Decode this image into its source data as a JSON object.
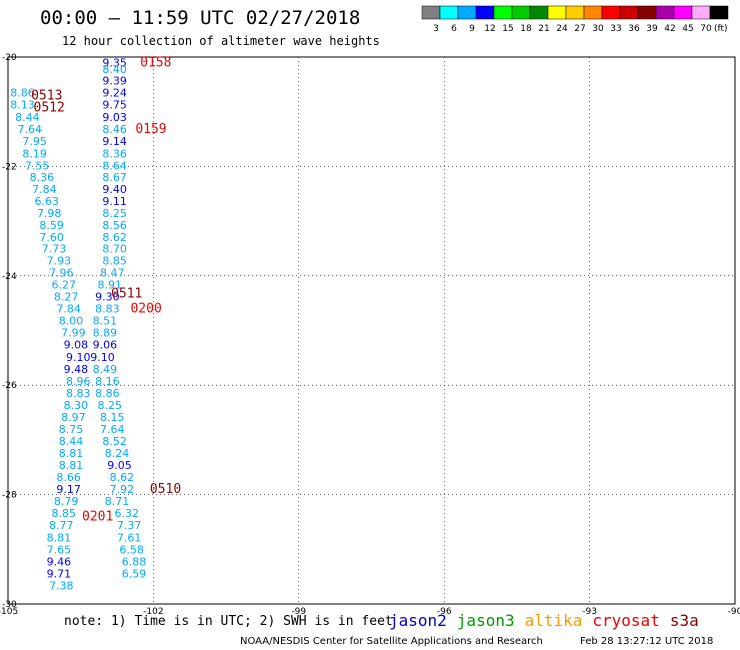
{
  "title": "00:00 — 11:59 UTC 02/27/2018",
  "subtitle": "12 hour collection of altimeter wave heights",
  "colorbar": {
    "labels": [
      "3",
      "6",
      "9",
      "12",
      "15",
      "18",
      "21",
      "24",
      "27",
      "30",
      "33",
      "36",
      "39",
      "42",
      "45",
      "70",
      "(ft)"
    ],
    "colors": [
      "#808080",
      "#00ffff",
      "#00aaff",
      "#0000ff",
      "#00ff00",
      "#00cc00",
      "#008800",
      "#ffff00",
      "#ffcc00",
      "#ff8800",
      "#ff0000",
      "#cc0000",
      "#880000",
      "#aa00aa",
      "#ff00ff",
      "#ffaaff",
      "#000000"
    ]
  },
  "note": "note: 1) Time is in UTC; 2) SWH is in feet",
  "satellites": [
    {
      "name": "jason2",
      "color": "#0000cc"
    },
    {
      "name": "jason3",
      "color": "#009900"
    },
    {
      "name": "altika",
      "color": "#ff9900"
    },
    {
      "name": "cryosat",
      "color": "#ee0000"
    },
    {
      "name": "s3a",
      "color": "#880000"
    }
  ],
  "credit": "NOAA/NESDIS Center for Satellite Applications and Research",
  "timestamp": "Feb 28 13:27:12 UTC 2018",
  "chart_data": {
    "type": "scatter",
    "xlim": [
      -105,
      -90
    ],
    "ylim": [
      -30,
      -20
    ],
    "x_ticks": [
      -105,
      -102,
      -99,
      -96,
      -93,
      -90
    ],
    "y_ticks": [
      -20,
      -22,
      -24,
      -26,
      -28,
      -30
    ],
    "grid": "dotted",
    "color_scale": [
      {
        "max": 9,
        "color": "#00aaff"
      },
      {
        "max": 12,
        "color": "#0000ff"
      }
    ],
    "tracks": [
      {
        "name": "track-east",
        "points": [
          {
            "lon": -102.8,
            "lat": -20.1,
            "v": "9.35"
          },
          {
            "lon": -102.8,
            "lat": -20.22,
            "v": "8.40"
          },
          {
            "lon": -102.8,
            "lat": -20.43,
            "v": "9.39"
          },
          {
            "lon": -102.8,
            "lat": -20.65,
            "v": "9.24"
          },
          {
            "lon": -102.8,
            "lat": -20.87,
            "v": "9.75"
          },
          {
            "lon": -102.8,
            "lat": -21.1,
            "v": "9.03"
          },
          {
            "lon": -102.8,
            "lat": -21.32,
            "v": "8.46"
          },
          {
            "lon": -102.8,
            "lat": -21.54,
            "v": "9.14"
          },
          {
            "lon": -102.8,
            "lat": -21.76,
            "v": "8.36"
          },
          {
            "lon": -102.8,
            "lat": -21.98,
            "v": "8.64"
          },
          {
            "lon": -102.8,
            "lat": -22.19,
            "v": "8.67"
          },
          {
            "lon": -102.8,
            "lat": -22.41,
            "v": "9.40"
          },
          {
            "lon": -102.8,
            "lat": -22.63,
            "v": "9.11"
          },
          {
            "lon": -102.8,
            "lat": -22.85,
            "v": "8.25"
          },
          {
            "lon": -102.8,
            "lat": -23.07,
            "v": "8.56"
          },
          {
            "lon": -102.8,
            "lat": -23.29,
            "v": "8.62"
          },
          {
            "lon": -102.8,
            "lat": -23.5,
            "v": "8.70"
          },
          {
            "lon": -102.8,
            "lat": -23.72,
            "v": "8.85"
          },
          {
            "lon": -102.85,
            "lat": -23.94,
            "v": "8.47"
          },
          {
            "lon": -102.9,
            "lat": -24.16,
            "v": "8.91"
          },
          {
            "lon": -102.95,
            "lat": -24.38,
            "v": "9.30"
          },
          {
            "lon": -102.95,
            "lat": -24.6,
            "v": "8.83"
          },
          {
            "lon": -103.0,
            "lat": -24.82,
            "v": "8.51"
          },
          {
            "lon": -103.0,
            "lat": -25.04,
            "v": "8.89"
          },
          {
            "lon": -103.0,
            "lat": -25.26,
            "v": "9.06"
          },
          {
            "lon": -103.05,
            "lat": -25.48,
            "v": "9.10"
          },
          {
            "lon": -103.0,
            "lat": -25.7,
            "v": "8.49"
          },
          {
            "lon": -102.95,
            "lat": -25.92,
            "v": "8.16"
          },
          {
            "lon": -102.95,
            "lat": -26.14,
            "v": "8.86"
          },
          {
            "lon": -102.9,
            "lat": -26.36,
            "v": "8.25"
          },
          {
            "lon": -102.85,
            "lat": -26.58,
            "v": "8.15"
          },
          {
            "lon": -102.85,
            "lat": -26.8,
            "v": "7.64"
          },
          {
            "lon": -102.8,
            "lat": -27.02,
            "v": "8.52"
          },
          {
            "lon": -102.75,
            "lat": -27.24,
            "v": "8.24"
          },
          {
            "lon": -102.7,
            "lat": -27.46,
            "v": "9.05"
          },
          {
            "lon": -102.65,
            "lat": -27.68,
            "v": "8.62"
          },
          {
            "lon": -102.65,
            "lat": -27.9,
            "v": "7.92"
          },
          {
            "lon": -102.75,
            "lat": -28.12,
            "v": "8.71"
          },
          {
            "lon": -102.55,
            "lat": -28.34,
            "v": "6.32"
          },
          {
            "lon": -102.5,
            "lat": -28.56,
            "v": "7.37"
          },
          {
            "lon": -102.5,
            "lat": -28.78,
            "v": "7.61"
          },
          {
            "lon": -102.45,
            "lat": -29.0,
            "v": "6.58"
          },
          {
            "lon": -102.4,
            "lat": -29.22,
            "v": "6.88"
          },
          {
            "lon": -102.4,
            "lat": -29.44,
            "v": "6.59"
          }
        ]
      },
      {
        "name": "track-west",
        "points": [
          {
            "lon": -104.7,
            "lat": -20.65,
            "v": "8.86"
          },
          {
            "lon": -104.7,
            "lat": -20.87,
            "v": "8.13"
          },
          {
            "lon": -104.6,
            "lat": -21.1,
            "v": "8.44"
          },
          {
            "lon": -104.55,
            "lat": -21.32,
            "v": "7.64"
          },
          {
            "lon": -104.45,
            "lat": -21.54,
            "v": "7.95"
          },
          {
            "lon": -104.45,
            "lat": -21.76,
            "v": "8.19"
          },
          {
            "lon": -104.4,
            "lat": -21.98,
            "v": "7.55"
          },
          {
            "lon": -104.3,
            "lat": -22.19,
            "v": "8.36"
          },
          {
            "lon": -104.25,
            "lat": -22.41,
            "v": "7.84"
          },
          {
            "lon": -104.2,
            "lat": -22.63,
            "v": "6.63"
          },
          {
            "lon": -104.15,
            "lat": -22.85,
            "v": "7.98"
          },
          {
            "lon": -104.1,
            "lat": -23.07,
            "v": "8.59"
          },
          {
            "lon": -104.1,
            "lat": -23.29,
            "v": "7.60"
          },
          {
            "lon": -104.05,
            "lat": -23.5,
            "v": "7.73"
          },
          {
            "lon": -103.95,
            "lat": -23.72,
            "v": "7.93"
          },
          {
            "lon": -103.9,
            "lat": -23.94,
            "v": "7.96"
          },
          {
            "lon": -103.85,
            "lat": -24.16,
            "v": "6.27"
          },
          {
            "lon": -103.8,
            "lat": -24.38,
            "v": "8.27"
          },
          {
            "lon": -103.75,
            "lat": -24.6,
            "v": "7.84"
          },
          {
            "lon": -103.7,
            "lat": -24.82,
            "v": "8.00"
          },
          {
            "lon": -103.65,
            "lat": -25.04,
            "v": "7.99"
          },
          {
            "lon": -103.6,
            "lat": -25.26,
            "v": "9.08"
          },
          {
            "lon": -103.55,
            "lat": -25.48,
            "v": "9.10"
          },
          {
            "lon": -103.6,
            "lat": -25.7,
            "v": "9.48"
          },
          {
            "lon": -103.55,
            "lat": -25.92,
            "v": "8.96"
          },
          {
            "lon": -103.55,
            "lat": -26.14,
            "v": "8.83"
          },
          {
            "lon": -103.6,
            "lat": -26.36,
            "v": "8.30"
          },
          {
            "lon": -103.65,
            "lat": -26.58,
            "v": "8.97"
          },
          {
            "lon": -103.7,
            "lat": -26.8,
            "v": "8.75"
          },
          {
            "lon": -103.7,
            "lat": -27.02,
            "v": "8.44"
          },
          {
            "lon": -103.7,
            "lat": -27.24,
            "v": "8.81"
          },
          {
            "lon": -103.7,
            "lat": -27.46,
            "v": "8.81"
          },
          {
            "lon": -103.75,
            "lat": -27.68,
            "v": "8.66"
          },
          {
            "lon": -103.75,
            "lat": -27.9,
            "v": "9.17"
          },
          {
            "lon": -103.8,
            "lat": -28.12,
            "v": "8.79"
          },
          {
            "lon": -103.85,
            "lat": -28.34,
            "v": "8.85"
          },
          {
            "lon": -103.9,
            "lat": -28.56,
            "v": "8.77"
          },
          {
            "lon": -103.95,
            "lat": -28.78,
            "v": "8.81"
          },
          {
            "lon": -103.95,
            "lat": -29.0,
            "v": "7.65"
          },
          {
            "lon": -103.95,
            "lat": -29.22,
            "v": "9.46"
          },
          {
            "lon": -103.95,
            "lat": -29.44,
            "v": "9.71"
          },
          {
            "lon": -103.9,
            "lat": -29.66,
            "v": "7.38"
          }
        ]
      }
    ],
    "time_labels": [
      {
        "lon": -101.95,
        "lat": -20.1,
        "t": "0158",
        "color": "#ee0000"
      },
      {
        "lon": -102.05,
        "lat": -21.32,
        "t": "0159",
        "color": "#ee0000"
      },
      {
        "lon": -104.2,
        "lat": -20.7,
        "t": "0513",
        "color": "#880000"
      },
      {
        "lon": -104.15,
        "lat": -20.92,
        "t": "0512",
        "color": "#880000"
      },
      {
        "lon": -102.55,
        "lat": -24.32,
        "t": "0511",
        "color": "#880000"
      },
      {
        "lon": -102.15,
        "lat": -24.6,
        "t": "0200",
        "color": "#ee0000"
      },
      {
        "lon": -101.75,
        "lat": -27.9,
        "t": "0510",
        "color": "#880000"
      },
      {
        "lon": -103.15,
        "lat": -28.4,
        "t": "0201",
        "color": "#ee0000"
      }
    ]
  }
}
